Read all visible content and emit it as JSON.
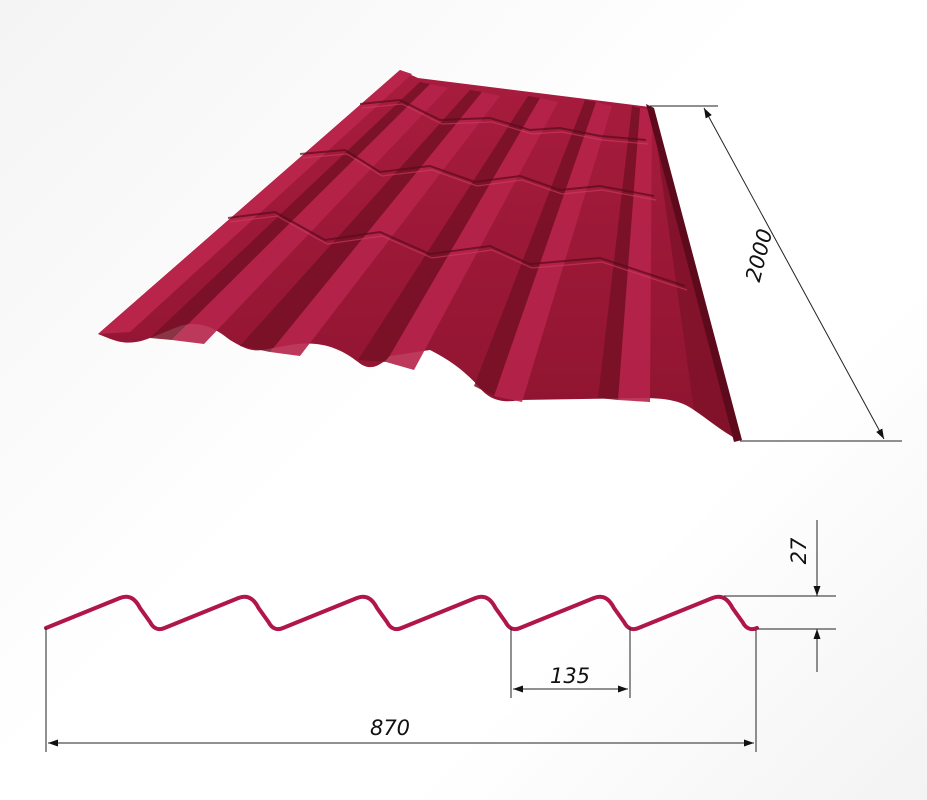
{
  "colors": {
    "sheet_base": "#9c1836",
    "sheet_light": "#b8244a",
    "sheet_dark": "#6e0c22",
    "profile": "#b0164a",
    "dim_line": "#222222"
  },
  "dimensions": {
    "length": "2000",
    "profile_height": "27",
    "wave_pitch": "135",
    "total_width": "870"
  },
  "profile": {
    "waves": 6
  }
}
